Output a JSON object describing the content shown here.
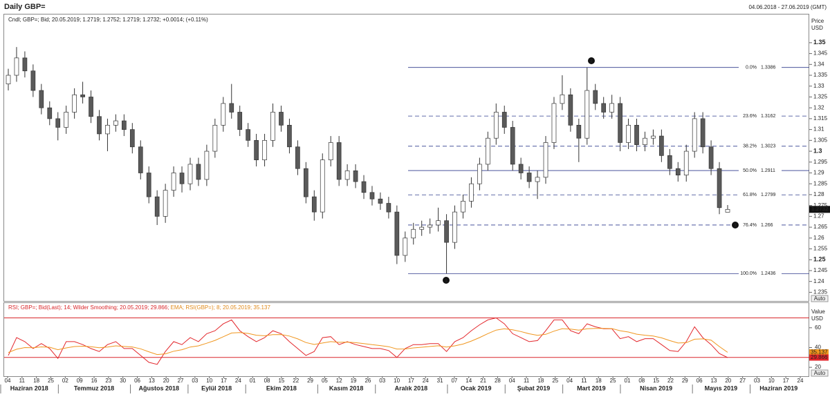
{
  "chart_data": [
    {
      "type": "candlestick",
      "title": "Daily GBP=",
      "subtitle": "04.06.2018 - 27.06.2019 (GMT)",
      "legend_text": "Cndl; GBP=; Bid; 20.05.2019; 1.2719; 1.2752; 1.2719; 1.2732; +0.0014; (+0.11%)",
      "y_label": "Price",
      "y_unit": "USD",
      "auto_button": "Auto",
      "up_color": "#ffffff",
      "down_color": "#5a5a5a",
      "edge_color": "#333333",
      "ylim": [
        1.231,
        1.363
      ],
      "yticks": [
        1.235,
        1.24,
        1.245,
        1.25,
        1.255,
        1.26,
        1.265,
        1.27,
        1.275,
        1.28,
        1.285,
        1.29,
        1.295,
        1.3,
        1.305,
        1.31,
        1.315,
        1.32,
        1.325,
        1.33,
        1.335,
        1.34,
        1.345,
        1.35
      ],
      "open": [
        1.331,
        1.335,
        1.343,
        1.337,
        1.328,
        1.32,
        1.315,
        1.311,
        1.318,
        1.326,
        1.325,
        1.316,
        1.308,
        1.312,
        1.314,
        1.31,
        1.302,
        1.29,
        1.279,
        1.27,
        1.282,
        1.29,
        1.285,
        1.294,
        1.287,
        1.3,
        1.312,
        1.322,
        1.318,
        1.31,
        1.305,
        1.296,
        1.305,
        1.318,
        1.312,
        1.302,
        1.292,
        1.279,
        1.272,
        1.296,
        1.304,
        1.287,
        1.291,
        1.286,
        1.281,
        1.278,
        1.276,
        1.272,
        1.252,
        1.26,
        1.264,
        1.265,
        1.266,
        1.268,
        1.258,
        1.272,
        1.277,
        1.285,
        1.294,
        1.306,
        1.318,
        1.311,
        1.294,
        1.29,
        1.286,
        1.288,
        1.304,
        1.322,
        1.326,
        1.312,
        1.306,
        1.328,
        1.322,
        1.318,
        1.322,
        1.304,
        1.312,
        1.303,
        1.306,
        1.307,
        1.298,
        1.292,
        1.289,
        1.3,
        1.315,
        1.302,
        1.292,
        1.2719
      ],
      "high": [
        1.338,
        1.348,
        1.346,
        1.34,
        1.331,
        1.323,
        1.318,
        1.321,
        1.329,
        1.332,
        1.328,
        1.319,
        1.315,
        1.317,
        1.317,
        1.313,
        1.305,
        1.293,
        1.282,
        1.285,
        1.293,
        1.293,
        1.297,
        1.297,
        1.303,
        1.315,
        1.325,
        1.331,
        1.321,
        1.313,
        1.308,
        1.308,
        1.322,
        1.321,
        1.315,
        1.305,
        1.295,
        1.282,
        1.299,
        1.307,
        1.307,
        1.294,
        1.294,
        1.289,
        1.284,
        1.281,
        1.279,
        1.275,
        1.263,
        1.267,
        1.268,
        1.269,
        1.274,
        1.271,
        1.275,
        1.28,
        1.288,
        1.297,
        1.309,
        1.322,
        1.321,
        1.314,
        1.297,
        1.293,
        1.291,
        1.307,
        1.325,
        1.335,
        1.329,
        1.315,
        1.3386,
        1.331,
        1.325,
        1.326,
        1.325,
        1.315,
        1.315,
        1.309,
        1.31,
        1.31,
        1.301,
        1.295,
        1.303,
        1.318,
        1.318,
        1.305,
        1.295,
        1.2752
      ],
      "low": [
        1.328,
        1.332,
        1.334,
        1.325,
        1.317,
        1.312,
        1.305,
        1.308,
        1.315,
        1.322,
        1.313,
        1.305,
        1.3,
        1.309,
        1.307,
        1.299,
        1.287,
        1.276,
        1.266,
        1.267,
        1.279,
        1.281,
        1.282,
        1.284,
        1.284,
        1.297,
        1.309,
        1.315,
        1.307,
        1.302,
        1.293,
        1.293,
        1.302,
        1.309,
        1.299,
        1.289,
        1.276,
        1.268,
        1.269,
        1.293,
        1.284,
        1.284,
        1.283,
        1.278,
        1.275,
        1.273,
        1.269,
        1.248,
        1.249,
        1.257,
        1.261,
        1.262,
        1.263,
        1.2436,
        1.255,
        1.269,
        1.274,
        1.282,
        1.291,
        1.303,
        1.308,
        1.291,
        1.287,
        1.283,
        1.278,
        1.285,
        1.301,
        1.319,
        1.309,
        1.295,
        1.303,
        1.319,
        1.315,
        1.315,
        1.3,
        1.301,
        1.3,
        1.3,
        1.303,
        1.295,
        1.289,
        1.286,
        1.286,
        1.297,
        1.299,
        1.289,
        1.271,
        1.2719
      ],
      "close": [
        1.335,
        1.343,
        1.337,
        1.328,
        1.32,
        1.315,
        1.311,
        1.318,
        1.326,
        1.325,
        1.316,
        1.308,
        1.312,
        1.314,
        1.31,
        1.302,
        1.29,
        1.279,
        1.27,
        1.282,
        1.29,
        1.285,
        1.294,
        1.287,
        1.3,
        1.312,
        1.322,
        1.318,
        1.31,
        1.305,
        1.296,
        1.305,
        1.318,
        1.312,
        1.302,
        1.292,
        1.279,
        1.272,
        1.296,
        1.304,
        1.287,
        1.291,
        1.286,
        1.281,
        1.278,
        1.276,
        1.272,
        1.252,
        1.26,
        1.264,
        1.265,
        1.266,
        1.268,
        1.258,
        1.272,
        1.277,
        1.285,
        1.294,
        1.306,
        1.318,
        1.311,
        1.294,
        1.29,
        1.286,
        1.288,
        1.304,
        1.322,
        1.326,
        1.312,
        1.306,
        1.328,
        1.322,
        1.318,
        1.322,
        1.304,
        1.312,
        1.303,
        1.306,
        1.307,
        1.298,
        1.292,
        1.289,
        1.3,
        1.315,
        1.302,
        1.292,
        1.274,
        1.2732
      ],
      "fib_color": "#2e3a8c",
      "fib": [
        {
          "label": "0.0%",
          "value": 1.3386,
          "style": "solid"
        },
        {
          "label": "23.6%",
          "value": 1.3162,
          "style": "dashed"
        },
        {
          "label": "38.2%",
          "value": 1.3023,
          "style": "dashed"
        },
        {
          "label": "50.0%",
          "value": 1.2911,
          "style": "solid"
        },
        {
          "label": "61.8%",
          "value": 1.2799,
          "style": "dashed"
        },
        {
          "label": "76.4%",
          "value": 1.266,
          "style": "dashed"
        },
        {
          "label": "100.0%",
          "value": 1.2436,
          "style": "solid"
        }
      ],
      "markers": [
        "1",
        "2",
        "3"
      ]
    },
    {
      "type": "line",
      "legend_rsi": "RSI; GBP=; Bid(Last); 14; Wilder Smoothing; 20.05.2019; 29.866;",
      "legend_ema": "EMA; RSI(GBP=); 8; 20.05.2019; 35.137",
      "y_label": "Value",
      "y_unit": "USD",
      "auto_button": "Auto",
      "ylim": [
        11,
        85
      ],
      "yticks": [
        20,
        40,
        60
      ],
      "levels": [
        70,
        30
      ],
      "level_color": "#d9262a",
      "series": [
        {
          "name": "RSI",
          "color": "#e3262b",
          "values": [
            32,
            50,
            46,
            39,
            44,
            39,
            29,
            46,
            46,
            43,
            39,
            36,
            43,
            46,
            39,
            39,
            32,
            25,
            23,
            36,
            46,
            43,
            50,
            46,
            54,
            57,
            64,
            68,
            57,
            51,
            46,
            50,
            57,
            54,
            46,
            39,
            32,
            36,
            50,
            51,
            43,
            46,
            43,
            41,
            39,
            39,
            37,
            30,
            39,
            43,
            43,
            44,
            44,
            36,
            46,
            50,
            57,
            63,
            68,
            70,
            64,
            54,
            50,
            46,
            47,
            57,
            68,
            68,
            57,
            54,
            64,
            61,
            59,
            59,
            49,
            51,
            46,
            49,
            49,
            43,
            37,
            36,
            46,
            61,
            50,
            43,
            34,
            29.866
          ]
        },
        {
          "name": "EMA",
          "color": "#f0961e",
          "values": [
            35,
            38.3,
            40,
            39.8,
            40.7,
            40.3,
            37.8,
            39.6,
            41,
            41.4,
            40.9,
            39.8,
            40.5,
            41.7,
            41.1,
            40.6,
            38.7,
            35.7,
            32.9,
            33.6,
            36.3,
            37.8,
            40.5,
            41.7,
            44.4,
            47.2,
            50.9,
            54.7,
            55.2,
            54.3,
            52.5,
            51.9,
            53,
            53.2,
            51.6,
            48.8,
            45.1,
            43.1,
            44.6,
            46,
            45.3,
            45.5,
            44.9,
            44,
            42.9,
            42,
            40.9,
            38.5,
            38.6,
            39.6,
            40.3,
            41.1,
            41.8,
            40.5,
            41.7,
            43.5,
            46.5,
            50.1,
            54.1,
            57.6,
            59,
            57.9,
            56.2,
            53.9,
            52.4,
            53.4,
            56.6,
            59.1,
            58.6,
            57.6,
            59,
            59.4,
            59.3,
            59.2,
            57,
            55.7,
            53.5,
            52.5,
            51.7,
            49.8,
            47,
            44.6,
            44.9,
            48.4,
            48.8,
            47.5,
            41,
            35.137
          ]
        }
      ],
      "day_labels": [
        "04",
        "11",
        "18",
        "25",
        "02",
        "09",
        "16",
        "23",
        "30",
        "06",
        "13",
        "20",
        "27",
        "03",
        "10",
        "17",
        "24",
        "01",
        "08",
        "15",
        "22",
        "29",
        "05",
        "12",
        "19",
        "26",
        "03",
        "10",
        "17",
        "24",
        "31",
        "07",
        "14",
        "21",
        "28",
        "04",
        "11",
        "18",
        "25",
        "04",
        "11",
        "18",
        "25",
        "01",
        "08",
        "15",
        "22",
        "29",
        "06",
        "13",
        "20",
        "27",
        "03",
        "10",
        "17",
        "24"
      ],
      "month_labels": [
        "Haziran 2018",
        "Temmuz 2018",
        "Ağustos 2018",
        "Eylül 2018",
        "Ekim 2018",
        "Kasım 2018",
        "Aralık 2018",
        "Ocak 2019",
        "Şubat 2019",
        "Mart 2019",
        "Nisan 2019",
        "Mayıs 2019",
        "Haziran 2019"
      ]
    }
  ]
}
